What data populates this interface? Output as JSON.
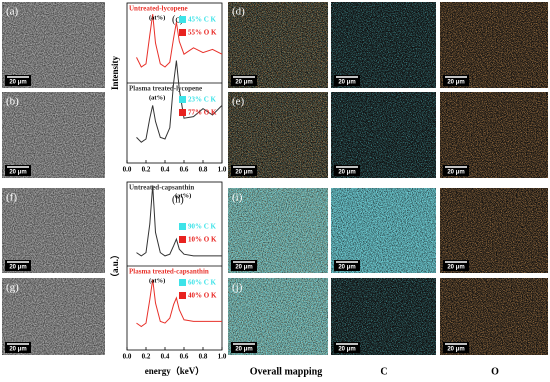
{
  "panels": {
    "a": "(a)",
    "b": "(b)",
    "d": "(d)",
    "e": "(e)",
    "f": "(f)",
    "g": "(g)",
    "i": "(i)",
    "j": "(j)"
  },
  "scale_bar": "20 μm",
  "column_labels": {
    "overall": "Overall mapping",
    "c": "C",
    "o": "O"
  },
  "chart_data": [
    {
      "type": "line",
      "panel_label": "(c)",
      "ylabel": "Intensity",
      "xlim": [
        0,
        1
      ],
      "ylim": [
        0,
        10
      ],
      "xticks": [
        {
          "value": 0,
          "label": "0.0"
        },
        {
          "value": 0.2,
          "label": "0.2"
        },
        {
          "value": 0.4,
          "label": "0.4"
        },
        {
          "value": 0.6,
          "label": "0.6"
        },
        {
          "value": 0.8,
          "label": "0.8"
        },
        {
          "value": 1,
          "label": "1.0"
        }
      ],
      "x": [
        0.1,
        0.15,
        0.2,
        0.24,
        0.27,
        0.3,
        0.35,
        0.4,
        0.45,
        0.49,
        0.52,
        0.55,
        0.6,
        0.7,
        0.8,
        0.9,
        1.0
      ],
      "series": [
        {
          "name": "Untreated-lycopene",
          "color": "#e8312a",
          "unit_label": "(at%)",
          "values": [
            6.6,
            6.0,
            6.2,
            8.0,
            9.3,
            7.5,
            6.2,
            6.0,
            6.3,
            7.8,
            8.8,
            7.6,
            6.8,
            7.2,
            6.9,
            7.1,
            6.8
          ],
          "composition": [
            {
              "label": "45% C K",
              "color": "#3de3e8"
            },
            {
              "label": "55% O K",
              "color": "#e8221f"
            }
          ]
        },
        {
          "name": "Plasma treated-lycopene",
          "color": "#333333",
          "unit_label": "(at%)",
          "values": [
            1.6,
            1.3,
            1.5,
            2.8,
            3.6,
            2.6,
            1.6,
            1.5,
            2.2,
            5.0,
            6.4,
            4.6,
            2.8,
            2.9,
            3.4,
            3.0,
            3.6
          ],
          "composition": [
            {
              "label": "23% C K",
              "color": "#3de3e8"
            },
            {
              "label": "77% O K",
              "color": "#e8221f"
            }
          ]
        }
      ]
    },
    {
      "type": "line",
      "panel_label": "(h)",
      "ylabel": "（a.u.）",
      "xlabel": "energy（keV）",
      "xlim": [
        0,
        1
      ],
      "ylim": [
        0,
        10
      ],
      "xticks": [
        {
          "value": 0,
          "label": "0.0"
        },
        {
          "value": 0.2,
          "label": "0.2"
        },
        {
          "value": 0.4,
          "label": "0.4"
        },
        {
          "value": 0.6,
          "label": "0.6"
        },
        {
          "value": 0.8,
          "label": "0.8"
        },
        {
          "value": 1,
          "label": "1.0"
        }
      ],
      "x": [
        0.1,
        0.15,
        0.2,
        0.24,
        0.27,
        0.3,
        0.35,
        0.4,
        0.45,
        0.49,
        0.52,
        0.55,
        0.6,
        0.7,
        0.8,
        0.9,
        1.0
      ],
      "series": [
        {
          "name": "Untreated-capsanthin",
          "color": "#333333",
          "unit_label": "(at%)",
          "values": [
            5.8,
            5.6,
            5.8,
            7.5,
            9.8,
            7.0,
            5.8,
            5.6,
            5.7,
            6.2,
            6.6,
            6.0,
            5.7,
            5.6,
            5.6,
            5.6,
            5.6
          ],
          "composition": [
            {
              "label": "90% C K",
              "color": "#3de3e8"
            },
            {
              "label": "10% O K",
              "color": "#e8221f"
            }
          ]
        },
        {
          "name": "Plasma treated-capsanthin",
          "color": "#e8312a",
          "unit_label": "(at%)",
          "values": [
            1.6,
            1.4,
            1.6,
            3.0,
            4.2,
            2.8,
            1.7,
            1.6,
            1.9,
            2.7,
            3.1,
            2.4,
            1.8,
            1.7,
            1.7,
            1.7,
            1.7
          ],
          "composition": [
            {
              "label": "60% C K",
              "color": "#3de3e8"
            },
            {
              "label": "40% O K",
              "color": "#e8221f"
            }
          ]
        }
      ]
    }
  ]
}
